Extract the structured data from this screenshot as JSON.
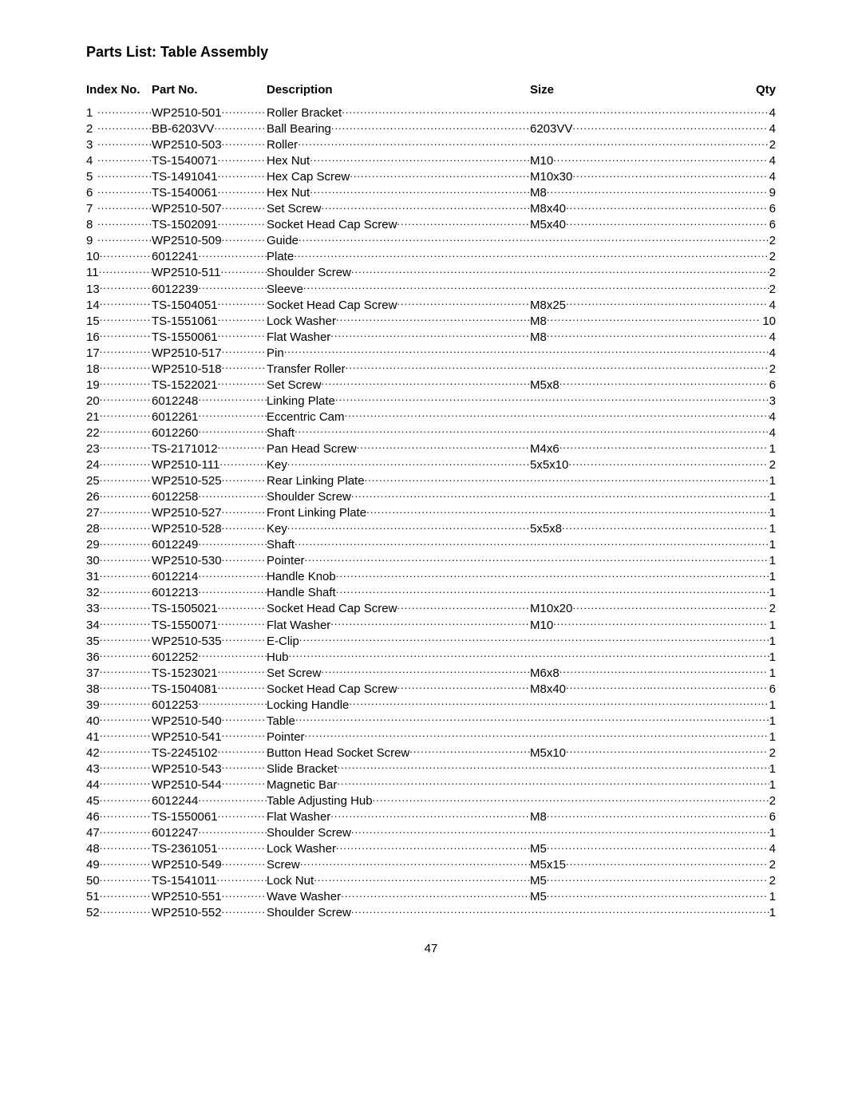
{
  "title": "Parts List: Table Assembly",
  "headers": {
    "index": "Index No.",
    "part": "Part No.",
    "description": "Description",
    "size": "Size",
    "qty": "Qty"
  },
  "pageNumber": "47",
  "rows": [
    {
      "index": "1",
      "part": "WP2510-501",
      "description": "Roller Bracket",
      "size": "",
      "qty": "4"
    },
    {
      "index": "2",
      "part": "BB-6203VV",
      "description": "Ball Bearing",
      "size": "6203VV",
      "qty": "4"
    },
    {
      "index": "3",
      "part": "WP2510-503",
      "description": "Roller",
      "size": "",
      "qty": "2"
    },
    {
      "index": "4",
      "part": "TS-1540071",
      "description": "Hex Nut",
      "size": "M10",
      "qty": "4"
    },
    {
      "index": "5",
      "part": "TS-1491041",
      "description": "Hex Cap Screw",
      "size": "M10x30",
      "qty": "4"
    },
    {
      "index": "6",
      "part": "TS-1540061",
      "description": "Hex Nut",
      "size": "M8",
      "qty": "9"
    },
    {
      "index": "7",
      "part": "WP2510-507",
      "description": "Set Screw",
      "size": "M8x40",
      "qty": "6"
    },
    {
      "index": "8",
      "part": "TS-1502091",
      "description": "Socket Head Cap Screw",
      "size": "M5x40",
      "qty": "6"
    },
    {
      "index": "9",
      "part": "WP2510-509",
      "description": "Guide",
      "size": "",
      "qty": "2"
    },
    {
      "index": "10",
      "part": "6012241",
      "description": "Plate",
      "size": "",
      "qty": "2"
    },
    {
      "index": "11",
      "part": "WP2510-511",
      "description": "Shoulder Screw",
      "size": "",
      "qty": "2"
    },
    {
      "index": "13",
      "part": "6012239",
      "description": "Sleeve",
      "size": "",
      "qty": "2"
    },
    {
      "index": "14",
      "part": "TS-1504051",
      "description": "Socket Head Cap Screw",
      "size": "M8x25",
      "qty": "4"
    },
    {
      "index": "15",
      "part": "TS-1551061",
      "description": "Lock Washer",
      "size": "M8",
      "qty": "10"
    },
    {
      "index": "16",
      "part": "TS-1550061",
      "description": "Flat Washer",
      "size": "M8",
      "qty": "4"
    },
    {
      "index": "17",
      "part": "WP2510-517",
      "description": "Pin",
      "size": "",
      "qty": "4"
    },
    {
      "index": "18",
      "part": "WP2510-518",
      "description": "Transfer Roller",
      "size": "",
      "qty": "2"
    },
    {
      "index": "19",
      "part": "TS-1522021",
      "description": "Set Screw",
      "size": "M5x8",
      "qty": "6"
    },
    {
      "index": "20",
      "part": "6012248",
      "description": "Linking Plate",
      "size": "",
      "qty": "3"
    },
    {
      "index": "21",
      "part": "6012261",
      "description": "Eccentric Cam",
      "size": "",
      "qty": "4"
    },
    {
      "index": "22",
      "part": "6012260",
      "description": "Shaft",
      "size": "",
      "qty": "4"
    },
    {
      "index": "23",
      "part": "TS-2171012",
      "description": "Pan Head Screw",
      "size": "M4x6",
      "qty": "1"
    },
    {
      "index": "24",
      "part": "WP2510-111",
      "description": "Key",
      "size": "5x5x10",
      "qty": "2"
    },
    {
      "index": "25",
      "part": "WP2510-525",
      "description": "Rear Linking Plate",
      "size": "",
      "qty": "1"
    },
    {
      "index": "26",
      "part": "6012258",
      "description": "Shoulder Screw",
      "size": "",
      "qty": "1"
    },
    {
      "index": "27",
      "part": "WP2510-527",
      "description": "Front Linking Plate",
      "size": "",
      "qty": "1"
    },
    {
      "index": "28",
      "part": "WP2510-528",
      "description": "Key",
      "size": "5x5x8",
      "qty": "1"
    },
    {
      "index": "29",
      "part": "6012249",
      "description": "Shaft",
      "size": "",
      "qty": "1"
    },
    {
      "index": "30",
      "part": "WP2510-530",
      "description": "Pointer",
      "size": "",
      "qty": "1"
    },
    {
      "index": "31",
      "part": "6012214",
      "description": "Handle Knob",
      "size": "",
      "qty": "1"
    },
    {
      "index": "32",
      "part": "6012213",
      "description": "Handle Shaft",
      "size": "",
      "qty": "1"
    },
    {
      "index": "33",
      "part": "TS-1505021",
      "description": "Socket Head Cap Screw",
      "size": "M10x20",
      "qty": "2"
    },
    {
      "index": "34",
      "part": "TS-1550071",
      "description": "Flat Washer",
      "size": "M10",
      "qty": "1"
    },
    {
      "index": "35",
      "part": "WP2510-535",
      "description": "E-Clip",
      "size": "",
      "qty": "1"
    },
    {
      "index": "36",
      "part": "6012252",
      "description": "Hub",
      "size": "",
      "qty": "1"
    },
    {
      "index": "37",
      "part": "TS-1523021",
      "description": "Set Screw",
      "size": "M6x8",
      "qty": "1"
    },
    {
      "index": "38",
      "part": "TS-1504081",
      "description": "Socket Head Cap Screw",
      "size": "M8x40",
      "qty": "6"
    },
    {
      "index": "39",
      "part": "6012253",
      "description": "Locking Handle",
      "size": "",
      "qty": "1"
    },
    {
      "index": "40",
      "part": "WP2510-540",
      "description": "Table",
      "size": "",
      "qty": "1"
    },
    {
      "index": "41",
      "part": "WP2510-541",
      "description": "Pointer",
      "size": "",
      "qty": "1"
    },
    {
      "index": "42",
      "part": "TS-2245102",
      "description": "Button Head Socket Screw",
      "size": "M5x10",
      "qty": "2"
    },
    {
      "index": "43",
      "part": "WP2510-543",
      "description": "Slide Bracket",
      "size": "",
      "qty": "1"
    },
    {
      "index": "44",
      "part": "WP2510-544",
      "description": "Magnetic Bar",
      "size": "",
      "qty": "1"
    },
    {
      "index": "45",
      "part": "6012244",
      "description": "Table Adjusting Hub",
      "size": "",
      "qty": "2"
    },
    {
      "index": "46",
      "part": "TS-1550061",
      "description": "Flat Washer",
      "size": "M8",
      "qty": "6"
    },
    {
      "index": "47",
      "part": "6012247",
      "description": "Shoulder Screw",
      "size": "",
      "qty": "1"
    },
    {
      "index": "48",
      "part": "TS-2361051",
      "description": "Lock Washer",
      "size": "M5",
      "qty": "4"
    },
    {
      "index": "49",
      "part": "WP2510-549",
      "description": "Screw",
      "size": "M5x15",
      "qty": "2"
    },
    {
      "index": "50",
      "part": "TS-1541011",
      "description": "Lock Nut",
      "size": "M5",
      "qty": "2"
    },
    {
      "index": "51",
      "part": "WP2510-551",
      "description": "Wave Washer",
      "size": "M5",
      "qty": "1"
    },
    {
      "index": "52",
      "part": "WP2510-552",
      "description": "Shoulder Screw",
      "size": "",
      "qty": "1"
    }
  ]
}
